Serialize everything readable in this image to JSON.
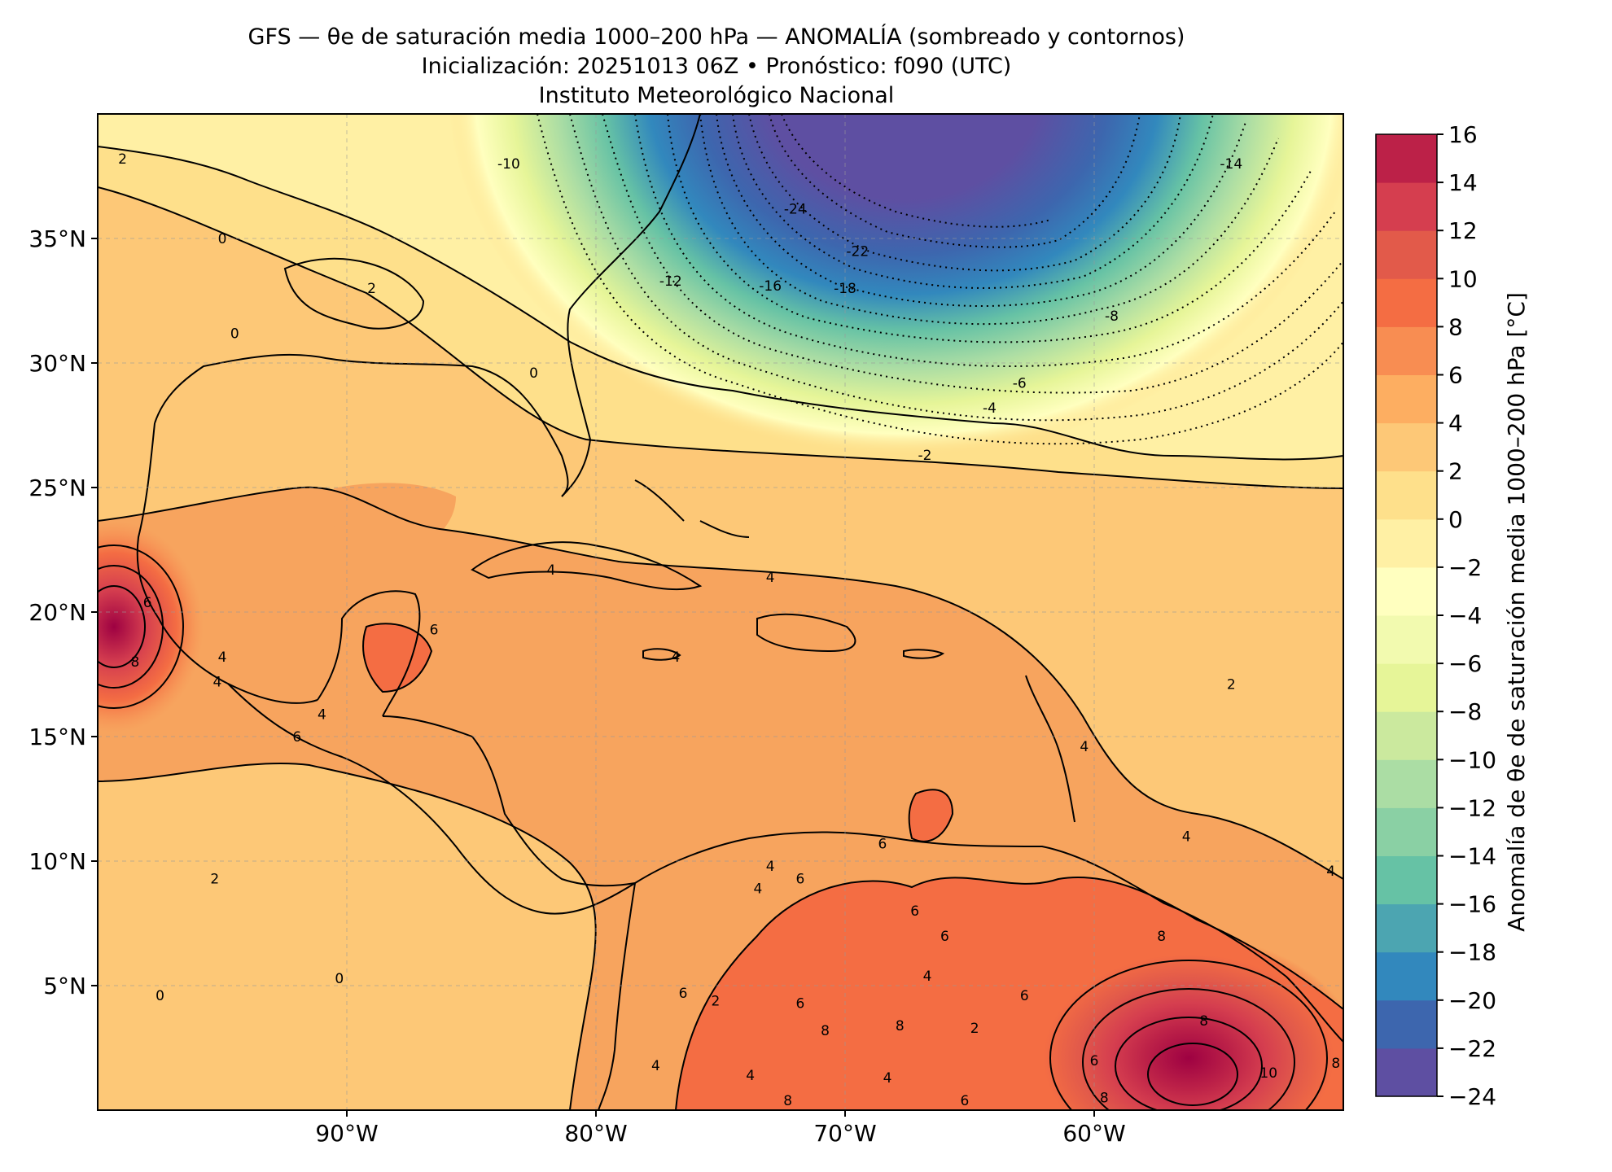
{
  "title": {
    "line1": "GFS — θe de saturación media 1000–200 hPa — ANOMALÍA (sombreado y contornos)",
    "line2": "Inicialización: 20251013 06Z   •   Pronóstico: f090 (UTC)",
    "line3": "Instituto Meteorológico Nacional"
  },
  "map": {
    "extent": {
      "lon_min": -100,
      "lon_max": -50,
      "lat_min": 0,
      "lat_max": 40
    },
    "lon_ticks": [
      {
        "lon": -90,
        "label": "90°W"
      },
      {
        "lon": -80,
        "label": "80°W"
      },
      {
        "lon": -70,
        "label": "70°W"
      },
      {
        "lon": -60,
        "label": "60°W"
      }
    ],
    "lat_ticks": [
      {
        "lat": 35,
        "label": "35°N"
      },
      {
        "lat": 30,
        "label": "30°N"
      },
      {
        "lat": 25,
        "label": "25°N"
      },
      {
        "lat": 20,
        "label": "20°N"
      },
      {
        "lat": 15,
        "label": "15°N"
      },
      {
        "lat": 10,
        "label": "10°N"
      },
      {
        "lat": 5,
        "label": "5°N"
      }
    ],
    "gridlines": true,
    "contour_labels": [
      {
        "lon": -89.0,
        "lat": 33.0,
        "text": "2"
      },
      {
        "lon": -95.0,
        "lat": 35.0,
        "text": "0"
      },
      {
        "lon": -94.5,
        "lat": 31.2,
        "text": "0"
      },
      {
        "lon": -99.0,
        "lat": 38.2,
        "text": "2"
      },
      {
        "lon": -83.5,
        "lat": 38.0,
        "text": "-10"
      },
      {
        "lon": -77.0,
        "lat": 33.3,
        "text": "-12"
      },
      {
        "lon": -73.0,
        "lat": 33.1,
        "text": "-16"
      },
      {
        "lon": -70.0,
        "lat": 33.0,
        "text": "-18"
      },
      {
        "lon": -69.5,
        "lat": 34.5,
        "text": "-22"
      },
      {
        "lon": -72.0,
        "lat": 36.2,
        "text": "-24"
      },
      {
        "lon": -54.5,
        "lat": 38.0,
        "text": "-14"
      },
      {
        "lon": -59.3,
        "lat": 31.9,
        "text": "-8"
      },
      {
        "lon": -63.0,
        "lat": 29.2,
        "text": "-6"
      },
      {
        "lon": -64.2,
        "lat": 28.2,
        "text": "-4"
      },
      {
        "lon": -66.8,
        "lat": 26.3,
        "text": "-2"
      },
      {
        "lon": -82.5,
        "lat": 29.6,
        "text": "0"
      },
      {
        "lon": -81.8,
        "lat": 21.7,
        "text": "4"
      },
      {
        "lon": -73.0,
        "lat": 21.4,
        "text": "4"
      },
      {
        "lon": -76.8,
        "lat": 18.2,
        "text": "4"
      },
      {
        "lon": -95.0,
        "lat": 18.2,
        "text": "4"
      },
      {
        "lon": -95.2,
        "lat": 17.2,
        "text": "4"
      },
      {
        "lon": -91.0,
        "lat": 15.9,
        "text": "4"
      },
      {
        "lon": -86.5,
        "lat": 19.3,
        "text": "6"
      },
      {
        "lon": -92.0,
        "lat": 15.0,
        "text": "6"
      },
      {
        "lon": -98.5,
        "lat": 18.0,
        "text": "8"
      },
      {
        "lon": -98.0,
        "lat": 20.4,
        "text": "6"
      },
      {
        "lon": -54.5,
        "lat": 17.1,
        "text": "2"
      },
      {
        "lon": -95.3,
        "lat": 9.3,
        "text": "2"
      },
      {
        "lon": -90.3,
        "lat": 5.3,
        "text": "0"
      },
      {
        "lon": -97.5,
        "lat": 4.6,
        "text": "0"
      },
      {
        "lon": -73.0,
        "lat": 9.8,
        "text": "4"
      },
      {
        "lon": -71.8,
        "lat": 9.3,
        "text": "6"
      },
      {
        "lon": -68.5,
        "lat": 10.7,
        "text": "6"
      },
      {
        "lon": -67.2,
        "lat": 8.0,
        "text": "6"
      },
      {
        "lon": -66.0,
        "lat": 7.0,
        "text": "6"
      },
      {
        "lon": -66.7,
        "lat": 5.4,
        "text": "4"
      },
      {
        "lon": -71.8,
        "lat": 4.3,
        "text": "6"
      },
      {
        "lon": -70.8,
        "lat": 3.2,
        "text": "8"
      },
      {
        "lon": -67.8,
        "lat": 3.4,
        "text": "8"
      },
      {
        "lon": -64.8,
        "lat": 3.3,
        "text": "2"
      },
      {
        "lon": -62.8,
        "lat": 4.6,
        "text": "6"
      },
      {
        "lon": -60.0,
        "lat": 2.0,
        "text": "6"
      },
      {
        "lon": -53.0,
        "lat": 1.5,
        "text": "10"
      },
      {
        "lon": -55.6,
        "lat": 3.6,
        "text": "8"
      },
      {
        "lon": -57.3,
        "lat": 7.0,
        "text": "8"
      },
      {
        "lon": -56.3,
        "lat": 11.0,
        "text": "4"
      },
      {
        "lon": -50.5,
        "lat": 9.6,
        "text": "4"
      },
      {
        "lon": -76.5,
        "lat": 4.7,
        "text": "6"
      },
      {
        "lon": -77.6,
        "lat": 1.8,
        "text": "4"
      },
      {
        "lon": -72.3,
        "lat": 0.4,
        "text": "8"
      },
      {
        "lon": -68.3,
        "lat": 1.3,
        "text": "4"
      },
      {
        "lon": -65.2,
        "lat": 0.4,
        "text": "6"
      },
      {
        "lon": -59.6,
        "lat": 0.5,
        "text": "8"
      },
      {
        "lon": -73.8,
        "lat": 1.4,
        "text": "4"
      },
      {
        "lon": -50.3,
        "lat": 1.9,
        "text": "8"
      },
      {
        "lon": -73.5,
        "lat": 8.9,
        "text": "4"
      },
      {
        "lon": -60.4,
        "lat": 14.6,
        "text": "4"
      },
      {
        "lon": -75.2,
        "lat": 4.4,
        "text": "2"
      }
    ]
  },
  "colorbar": {
    "label": "Anomalía de θe de saturación media 1000–200 hPa [°C]",
    "levels": [
      -24,
      -22,
      -20,
      -18,
      -16,
      -14,
      -12,
      -10,
      -8,
      -6,
      -4,
      -2,
      0,
      2,
      4,
      6,
      8,
      10,
      12,
      14,
      16
    ],
    "tick_labels": [
      "−24",
      "−22",
      "−20",
      "−18",
      "−16",
      "−14",
      "−12",
      "−10",
      "−8",
      "−6",
      "−4",
      "−2",
      "0",
      "2",
      "4",
      "6",
      "8",
      "10",
      "12",
      "14",
      "16"
    ],
    "colors": [
      "#5e4fa2",
      "#3d66ae",
      "#3288bd",
      "#4ca5b1",
      "#66c2a5",
      "#8ad0a4",
      "#abdda4",
      "#cbe99e",
      "#e6f598",
      "#f2faaf",
      "#ffffbf",
      "#fff0a4",
      "#fee08b",
      "#fdc877",
      "#fdae61",
      "#f88d52",
      "#f46d43",
      "#e25a4a",
      "#d53e4f",
      "#bc2148",
      "#9e0142"
    ]
  }
}
